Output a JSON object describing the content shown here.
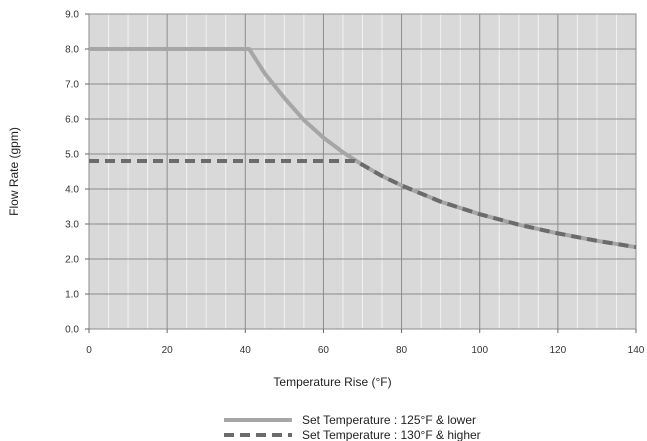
{
  "chart_data": {
    "type": "line",
    "xlabel": "Temperature Rise  (°F)",
    "ylabel": "Flow Rate (gpm)",
    "xlim": [
      0,
      140
    ],
    "ylim": [
      0,
      9
    ],
    "x_ticks": [
      0,
      20,
      40,
      60,
      80,
      100,
      120,
      140
    ],
    "x_tick_labels": [
      "0",
      "20",
      "40",
      "60",
      "80",
      "100",
      "120",
      "140"
    ],
    "y_ticks": [
      0,
      1,
      2,
      3,
      4,
      5,
      6,
      7,
      8,
      9
    ],
    "y_tick_labels": [
      "0.0",
      "1.0",
      "2.0",
      "3.0",
      "4.0",
      "5.0",
      "6.0",
      "7.0",
      "8.0",
      "9.0"
    ],
    "grid": true,
    "legend_position": "bottom-center",
    "colors": {
      "plot_background": "#d9d9d9",
      "major_grid": "#8c8c8c",
      "minor_grid": "#f2f2f2",
      "series_solid": "#a6a6a6",
      "series_dashed": "#6b6b6b"
    },
    "series": [
      {
        "name": "Set Temperature : 125°F & lower",
        "style": "solid",
        "x": [
          0,
          41,
          45,
          50,
          55,
          60,
          65,
          70,
          75,
          80,
          90,
          100,
          110,
          120,
          130,
          140
        ],
        "y": [
          8.0,
          8.0,
          7.3,
          6.6,
          5.97,
          5.47,
          5.05,
          4.69,
          4.37,
          4.1,
          3.64,
          3.28,
          2.98,
          2.73,
          2.52,
          2.34
        ]
      },
      {
        "name": "Set Temperature : 130°F & higher",
        "style": "dashed",
        "x": [
          0,
          68,
          70,
          75,
          80,
          90,
          100,
          110,
          120,
          130,
          140
        ],
        "y": [
          4.8,
          4.8,
          4.69,
          4.37,
          4.1,
          3.64,
          3.28,
          2.98,
          2.73,
          2.52,
          2.34
        ]
      }
    ]
  }
}
